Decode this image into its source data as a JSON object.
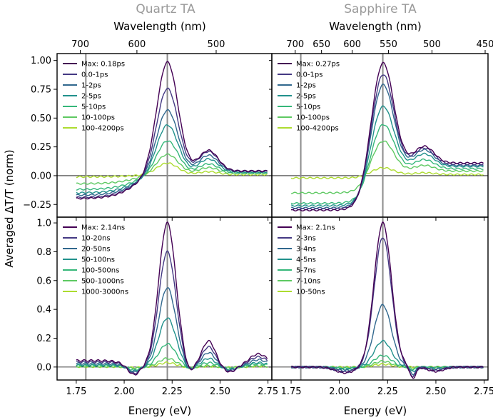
{
  "figure": {
    "ylabel": "Averaged ΔT/T (norm)",
    "xlabel": "Energy (eV)",
    "top_xlabel": "Wavelength (nm)"
  },
  "chart_data": [
    {
      "type": "line",
      "panel": "top-left",
      "title": "Quartz TA",
      "xlabel": "Energy (eV)",
      "ylabel": "Averaged ΔT/T (norm)",
      "top_xlabel": "Wavelength (nm)",
      "xlim": [
        1.65,
        2.77
      ],
      "ylim": [
        -0.36,
        1.06
      ],
      "yticks": [
        -0.25,
        0.0,
        0.25,
        0.5,
        0.75,
        1.0
      ],
      "ytick_labels": [
        "−0.25",
        "0.00",
        "0.25",
        "0.50",
        "0.75",
        "1.00"
      ],
      "top_ticks": [
        700,
        600,
        500
      ],
      "vlines": [
        1.8,
        2.225
      ],
      "series": [
        {
          "name": "Max: 0.18ps",
          "color": "#440154",
          "peak": 1.0,
          "low": -0.2,
          "sec": 0.2,
          "tail": 0.04
        },
        {
          "name": "0.0-1ps",
          "color": "#443983",
          "peak": 0.77,
          "low": -0.19,
          "sec": 0.19,
          "tail": 0.04
        },
        {
          "name": "1-2ps",
          "color": "#31688e",
          "peak": 0.58,
          "low": -0.17,
          "sec": 0.16,
          "tail": 0.035
        },
        {
          "name": "2-5ps",
          "color": "#21918c",
          "peak": 0.45,
          "low": -0.15,
          "sec": 0.13,
          "tail": 0.03
        },
        {
          "name": "5-10ps",
          "color": "#35b779",
          "peak": 0.31,
          "low": -0.12,
          "sec": 0.09,
          "tail": 0.025
        },
        {
          "name": "10-100ps",
          "color": "#5ec962",
          "peak": 0.19,
          "low": -0.07,
          "sec": 0.06,
          "tail": 0.02
        },
        {
          "name": "100-4200ps",
          "color": "#addc30",
          "peak": 0.11,
          "low": -0.01,
          "sec": 0.03,
          "tail": 0.01
        }
      ]
    },
    {
      "type": "line",
      "panel": "top-right",
      "title": "Sapphire TA",
      "xlabel": "Energy (eV)",
      "top_xlabel": "Wavelength (nm)",
      "xlim": [
        1.65,
        2.77
      ],
      "ylim": [
        -0.36,
        1.06
      ],
      "top_ticks": [
        700,
        650,
        600,
        550,
        500,
        450
      ],
      "vlines": [
        1.8,
        2.225
      ],
      "series": [
        {
          "name": "Max: 0.27ps",
          "color": "#440154",
          "peak": 1.0,
          "low": -0.3,
          "sec": 0.2,
          "tail": 0.11
        },
        {
          "name": "0.0-1ps",
          "color": "#443983",
          "peak": 0.9,
          "low": -0.29,
          "sec": 0.19,
          "tail": 0.1
        },
        {
          "name": "1-2ps",
          "color": "#31688e",
          "peak": 0.81,
          "low": -0.28,
          "sec": 0.18,
          "tail": 0.09
        },
        {
          "name": "2-5ps",
          "color": "#21918c",
          "peak": 0.62,
          "low": -0.26,
          "sec": 0.15,
          "tail": 0.08
        },
        {
          "name": "5-10ps",
          "color": "#35b779",
          "peak": 0.46,
          "low": -0.24,
          "sec": 0.11,
          "tail": 0.06
        },
        {
          "name": "10-100ps",
          "color": "#5ec962",
          "peak": 0.31,
          "low": -0.15,
          "sec": 0.07,
          "tail": 0.04
        },
        {
          "name": "100-4200ps",
          "color": "#addc30",
          "peak": 0.07,
          "low": -0.02,
          "sec": 0.02,
          "tail": 0.01
        }
      ]
    },
    {
      "type": "line",
      "panel": "bottom-left",
      "xlabel": "Energy (eV)",
      "xlim": [
        1.65,
        2.77
      ],
      "ylim": [
        -0.09,
        1.04
      ],
      "xticks": [
        1.75,
        2.0,
        2.25,
        2.5,
        2.75
      ],
      "xtick_labels": [
        "1.75",
        "2.00",
        "2.25",
        "2.50",
        "2.75"
      ],
      "yticks": [
        0.0,
        0.2,
        0.4,
        0.6,
        0.8,
        1.0
      ],
      "ytick_labels": [
        "0.0",
        "0.2",
        "0.4",
        "0.6",
        "0.8",
        "1.0"
      ],
      "vlines": [
        1.8,
        2.225
      ],
      "series": [
        {
          "name": "Max: 2.14ns",
          "color": "#440154",
          "peak": 1.0,
          "dip": -0.06,
          "sec": 0.18,
          "tail": 0.09
        },
        {
          "name": "10-20ns",
          "color": "#443983",
          "peak": 0.8,
          "dip": -0.05,
          "sec": 0.14,
          "tail": 0.07
        },
        {
          "name": "20-50ns",
          "color": "#31688e",
          "peak": 0.55,
          "dip": -0.04,
          "sec": 0.1,
          "tail": 0.05
        },
        {
          "name": "50-100ns",
          "color": "#21918c",
          "peak": 0.34,
          "dip": -0.03,
          "sec": 0.06,
          "tail": 0.03
        },
        {
          "name": "100-500ns",
          "color": "#35b779",
          "peak": 0.16,
          "dip": -0.02,
          "sec": 0.03,
          "tail": 0.02
        },
        {
          "name": "500-1000ns",
          "color": "#5ec962",
          "peak": 0.06,
          "dip": -0.01,
          "sec": 0.01,
          "tail": 0.01
        },
        {
          "name": "1000-3000ns",
          "color": "#addc30",
          "peak": 0.03,
          "dip": -0.005,
          "sec": 0.005,
          "tail": 0.005
        }
      ]
    },
    {
      "type": "line",
      "panel": "bottom-right",
      "xlabel": "Energy (eV)",
      "xlim": [
        1.65,
        2.77
      ],
      "ylim": [
        -0.09,
        1.04
      ],
      "xticks": [
        1.75,
        2.0,
        2.25,
        2.5,
        2.75
      ],
      "xtick_labels": [
        "1.75",
        "2.00",
        "2.25",
        "2.50",
        "2.75"
      ],
      "vlines": [
        1.8,
        2.225
      ],
      "series": [
        {
          "name": "Max: 2.1ns",
          "color": "#440154",
          "peak": 1.0,
          "dip": -0.04,
          "sec": -0.03,
          "tail": 0.0
        },
        {
          "name": "2-3ns",
          "color": "#443983",
          "peak": 0.9,
          "dip": -0.035,
          "sec": -0.025,
          "tail": 0.0
        },
        {
          "name": "3-4ns",
          "color": "#31688e",
          "peak": 0.43,
          "dip": -0.025,
          "sec": -0.015,
          "tail": 0.0
        },
        {
          "name": "4-5ns",
          "color": "#21918c",
          "peak": 0.18,
          "dip": -0.015,
          "sec": -0.01,
          "tail": 0.0
        },
        {
          "name": "5-7ns",
          "color": "#35b779",
          "peak": 0.08,
          "dip": -0.01,
          "sec": -0.005,
          "tail": 0.0
        },
        {
          "name": "7-10ns",
          "color": "#5ec962",
          "peak": 0.04,
          "dip": -0.005,
          "sec": 0.0,
          "tail": 0.0
        },
        {
          "name": "10-50ns",
          "color": "#addc30",
          "peak": 0.02,
          "dip": 0.0,
          "sec": 0.0,
          "tail": 0.0
        }
      ]
    }
  ]
}
